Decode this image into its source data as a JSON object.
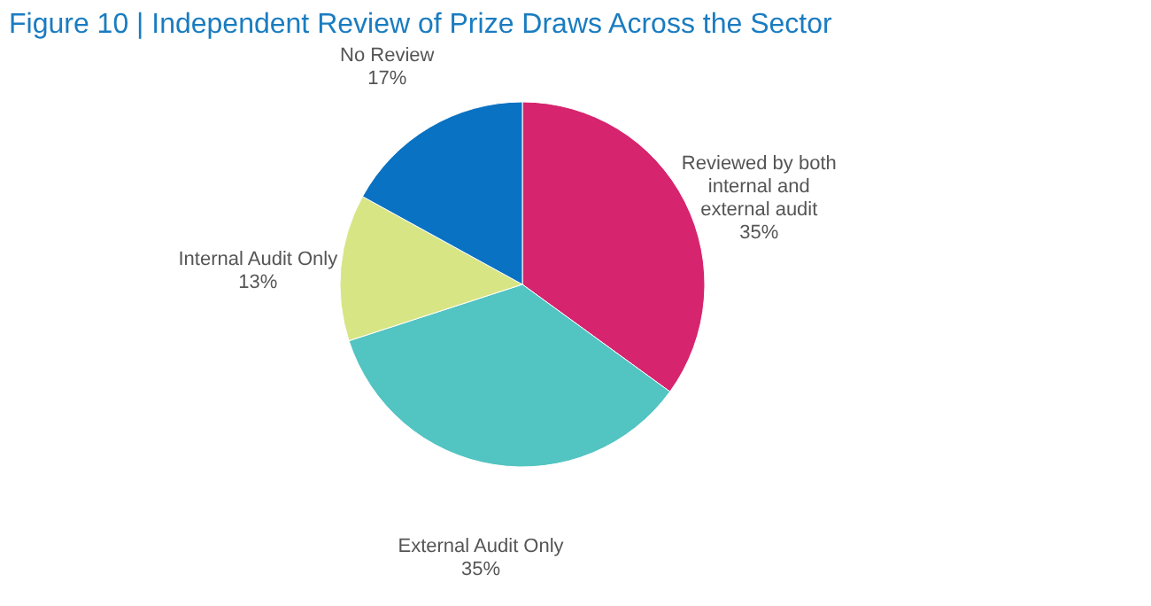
{
  "chart_data": {
    "type": "pie",
    "title": "Figure 10 | Independent Review of Prize Draws Across the Sector",
    "categories": [
      "Reviewed by both\ninternal and\nexternal audit",
      "External Audit Only",
      "Internal Audit Only",
      "No Review"
    ],
    "values": [
      35,
      35,
      13,
      17
    ],
    "value_labels": [
      "35%",
      "35%",
      "13%",
      "17%"
    ],
    "colors": [
      "#d6246e",
      "#52c4c2",
      "#d8e584",
      "#0a72c2"
    ],
    "legend": false
  }
}
